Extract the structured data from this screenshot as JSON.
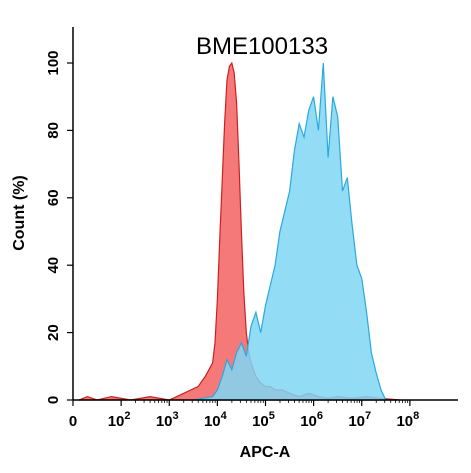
{
  "chart_data": {
    "type": "area",
    "title": "BME100133",
    "xlabel": "APC-A",
    "ylabel": "Count  (%)",
    "x_scale": "log",
    "xlim": [
      0,
      8
    ],
    "ylim": [
      0,
      100
    ],
    "x_ticks": [
      {
        "base": "0",
        "exp": ""
      },
      {
        "base": "10",
        "exp": "2"
      },
      {
        "base": "10",
        "exp": "3"
      },
      {
        "base": "10",
        "exp": "4"
      },
      {
        "base": "10",
        "exp": "5"
      },
      {
        "base": "10",
        "exp": "6"
      },
      {
        "base": "10",
        "exp": "7"
      },
      {
        "base": "10",
        "exp": "8"
      }
    ],
    "y_ticks": [
      "0",
      "20",
      "40",
      "60",
      "80",
      "100"
    ],
    "grid": false,
    "legend": "none",
    "series": [
      {
        "color": "#f56a6a",
        "stroke": "#cc2020",
        "x": [
          0.12,
          0.3,
          0.5,
          0.8,
          1.2,
          1.6,
          2.0,
          2.3,
          2.6,
          2.75,
          2.9,
          2.95,
          3.0,
          3.05,
          3.1,
          3.15,
          3.2,
          3.25,
          3.3,
          3.35,
          3.4,
          3.45,
          3.5,
          3.55,
          3.6,
          3.65,
          3.7,
          3.75,
          3.8,
          3.9,
          4.0,
          4.1,
          4.2,
          4.35,
          4.5,
          4.7,
          4.9,
          5.1,
          5.3,
          5.5,
          5.8,
          6.1,
          6.4,
          6.8
        ],
        "values": [
          0,
          1,
          0,
          1,
          0,
          1,
          0,
          2,
          4,
          7,
          11,
          17,
          30,
          48,
          65,
          82,
          95,
          99,
          100,
          97,
          88,
          70,
          50,
          32,
          20,
          14,
          11,
          9,
          7,
          5,
          4,
          4,
          3,
          3,
          2,
          1,
          2,
          1,
          0.5,
          1,
          0.5,
          1,
          0.5,
          0
        ]
      },
      {
        "color": "#7fd6f5",
        "stroke": "#29a9df",
        "x": [
          2.5,
          2.9,
          3.0,
          3.1,
          3.2,
          3.3,
          3.4,
          3.5,
          3.6,
          3.7,
          3.8,
          3.9,
          4.0,
          4.1,
          4.2,
          4.3,
          4.4,
          4.5,
          4.6,
          4.7,
          4.8,
          4.9,
          5.0,
          5.1,
          5.2,
          5.3,
          5.4,
          5.5,
          5.6,
          5.7,
          5.8,
          5.9,
          6.0,
          6.1,
          6.2,
          6.3,
          6.4,
          6.5
        ],
        "values": [
          0,
          1,
          3,
          7,
          12,
          9,
          14,
          17,
          13,
          22,
          26,
          20,
          28,
          34,
          40,
          50,
          56,
          62,
          74,
          82,
          78,
          86,
          90,
          80,
          100,
          72,
          90,
          84,
          62,
          66,
          52,
          40,
          36,
          26,
          14,
          8,
          3,
          0
        ]
      }
    ]
  }
}
